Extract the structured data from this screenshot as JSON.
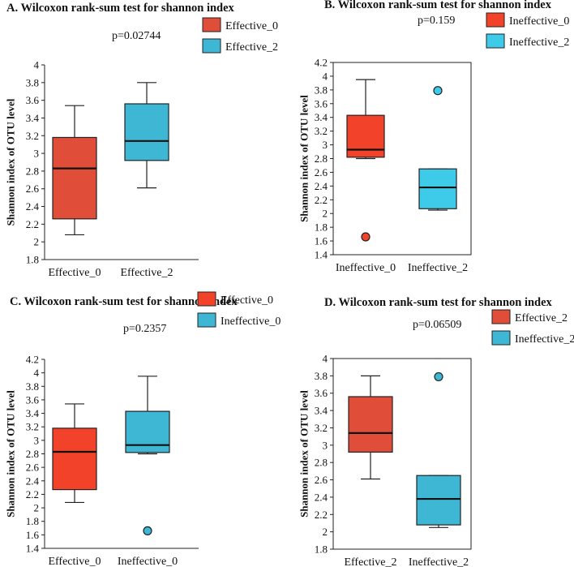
{
  "chart_data": [
    {
      "type": "boxplot",
      "title": "A. Wilcoxon rank-sum test for shannon index",
      "pvalue": "p=0.02744",
      "ylabel": "Shannon index of OTU level",
      "ylim": [
        1.8,
        4.0
      ],
      "yticks": [
        "1.8",
        "2",
        "2.2",
        "2.4",
        "2.6",
        "2.8",
        "3",
        "3.2",
        "3.4",
        "3.6",
        "3.8",
        "4"
      ],
      "categories": [
        "Effective_0",
        "Effective_2"
      ],
      "legend": [
        "Effective_0",
        "Effective_2"
      ],
      "series": [
        {
          "name": "Effective_0",
          "color": "#e04e39",
          "min": 2.08,
          "q1": 2.26,
          "median": 2.83,
          "q3": 3.18,
          "max": 3.54,
          "outliers": []
        },
        {
          "name": "Effective_2",
          "color": "#3db7d3",
          "min": 2.61,
          "q1": 2.92,
          "median": 3.14,
          "q3": 3.56,
          "max": 3.8,
          "outliers": []
        }
      ]
    },
    {
      "type": "boxplot",
      "title": "B. Wilcoxon rank-sum test for shannon index",
      "pvalue": "p=0.159",
      "ylabel": "Shannon index of OTU level",
      "ylim": [
        1.4,
        4.2
      ],
      "yticks": [
        "1.4",
        "1.6",
        "1.8",
        "2",
        "2.2",
        "2.4",
        "2.6",
        "2.8",
        "3",
        "3.2",
        "3.4",
        "3.6",
        "3.8",
        "4",
        "4.2"
      ],
      "categories": [
        "Ineffective_0",
        "Ineffective_2"
      ],
      "legend": [
        "Ineffective_0",
        "Ineffective_2"
      ],
      "series": [
        {
          "name": "Ineffective_0",
          "color": "#f2432a",
          "min": 2.8,
          "q1": 2.82,
          "median": 2.93,
          "q3": 3.43,
          "max": 3.95,
          "outliers": [
            1.66
          ]
        },
        {
          "name": "Ineffective_2",
          "color": "#3ecbea",
          "min": 2.05,
          "q1": 2.07,
          "median": 2.38,
          "q3": 2.65,
          "max": 2.65,
          "outliers": [
            3.79
          ]
        }
      ]
    },
    {
      "type": "boxplot",
      "title": "C. Wilcoxon rank-sum test for shannon index",
      "pvalue": "p=0.2357",
      "ylabel": "Shannon index of OTU level",
      "ylim": [
        1.4,
        4.2
      ],
      "yticks": [
        "1.4",
        "1.6",
        "1.8",
        "2",
        "2.2",
        "2.4",
        "2.6",
        "2.8",
        "3",
        "3.2",
        "3.4",
        "3.6",
        "3.8",
        "4",
        "4.2"
      ],
      "categories": [
        "Effective_0",
        "Ineffective_0"
      ],
      "legend": [
        "Effective_0",
        "Ineffective_0"
      ],
      "series": [
        {
          "name": "Effective_0",
          "color": "#f2432a",
          "min": 2.08,
          "q1": 2.27,
          "median": 2.83,
          "q3": 3.18,
          "max": 3.54,
          "outliers": []
        },
        {
          "name": "Ineffective_0",
          "color": "#3db7d3",
          "min": 2.8,
          "q1": 2.82,
          "median": 2.93,
          "q3": 3.43,
          "max": 3.95,
          "outliers": [
            1.66
          ]
        }
      ]
    },
    {
      "type": "boxplot",
      "title": "D. Wilcoxon rank-sum test for shannon index",
      "pvalue": "p=0.06509",
      "ylabel": "Shannon index of OTU level",
      "ylim": [
        1.8,
        4.0
      ],
      "yticks": [
        "1.8",
        "2",
        "2.2",
        "2.4",
        "2.6",
        "2.8",
        "3",
        "3.2",
        "3.4",
        "3.6",
        "3.8",
        "4"
      ],
      "categories": [
        "Effective_2",
        "Ineffective_2"
      ],
      "legend": [
        "Effective_2",
        "Ineffective_2"
      ],
      "series": [
        {
          "name": "Effective_2",
          "color": "#e04e39",
          "min": 2.61,
          "q1": 2.92,
          "median": 3.14,
          "q3": 3.56,
          "max": 3.8,
          "outliers": []
        },
        {
          "name": "Ineffective_2",
          "color": "#3db7d3",
          "min": 2.05,
          "q1": 2.08,
          "median": 2.38,
          "q3": 2.65,
          "max": 2.65,
          "outliers": [
            3.79
          ]
        }
      ]
    }
  ]
}
